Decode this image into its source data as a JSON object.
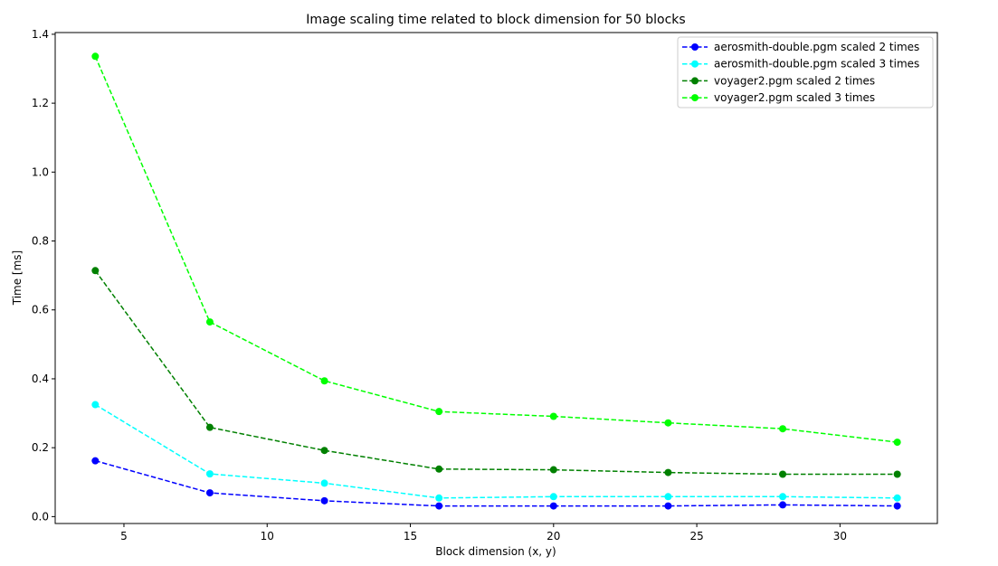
{
  "chart_data": {
    "type": "line",
    "title": "Image scaling time related to block dimension for 50 blocks",
    "xlabel": "Block dimension (x, y)",
    "ylabel": "Time [ms]",
    "xlim": [
      2.6,
      33.4
    ],
    "ylim": [
      -0.02,
      1.405
    ],
    "xticks": [
      5,
      10,
      15,
      20,
      25,
      30
    ],
    "xtick_labels": [
      "5",
      "10",
      "15",
      "20",
      "25",
      "30"
    ],
    "yticks": [
      0.0,
      0.2,
      0.4,
      0.6,
      0.8,
      1.0,
      1.2,
      1.4
    ],
    "ytick_labels": [
      "0.0",
      "0.2",
      "0.4",
      "0.6",
      "0.8",
      "1.0",
      "1.2",
      "1.4"
    ],
    "grid": false,
    "legend_position": "top-right",
    "line_style": "dashed",
    "marker": "circle",
    "x": [
      4,
      8,
      12,
      16,
      20,
      24,
      28,
      32
    ],
    "series": [
      {
        "name": "aerosmith-double.pgm scaled 2 times",
        "color": "#0000ff",
        "values": [
          0.162,
          0.069,
          0.046,
          0.031,
          0.031,
          0.031,
          0.034,
          0.031
        ]
      },
      {
        "name": "aerosmith-double.pgm scaled 3 times",
        "color": "#00ffff",
        "values": [
          0.325,
          0.124,
          0.097,
          0.054,
          0.058,
          0.058,
          0.058,
          0.054
        ]
      },
      {
        "name": "voyager2.pgm scaled 2 times",
        "color": "#008000",
        "values": [
          0.714,
          0.259,
          0.192,
          0.138,
          0.136,
          0.128,
          0.123,
          0.123
        ]
      },
      {
        "name": "voyager2.pgm scaled 3 times",
        "color": "#00ff00",
        "values": [
          1.336,
          0.565,
          0.394,
          0.305,
          0.291,
          0.272,
          0.255,
          0.216
        ]
      }
    ]
  }
}
